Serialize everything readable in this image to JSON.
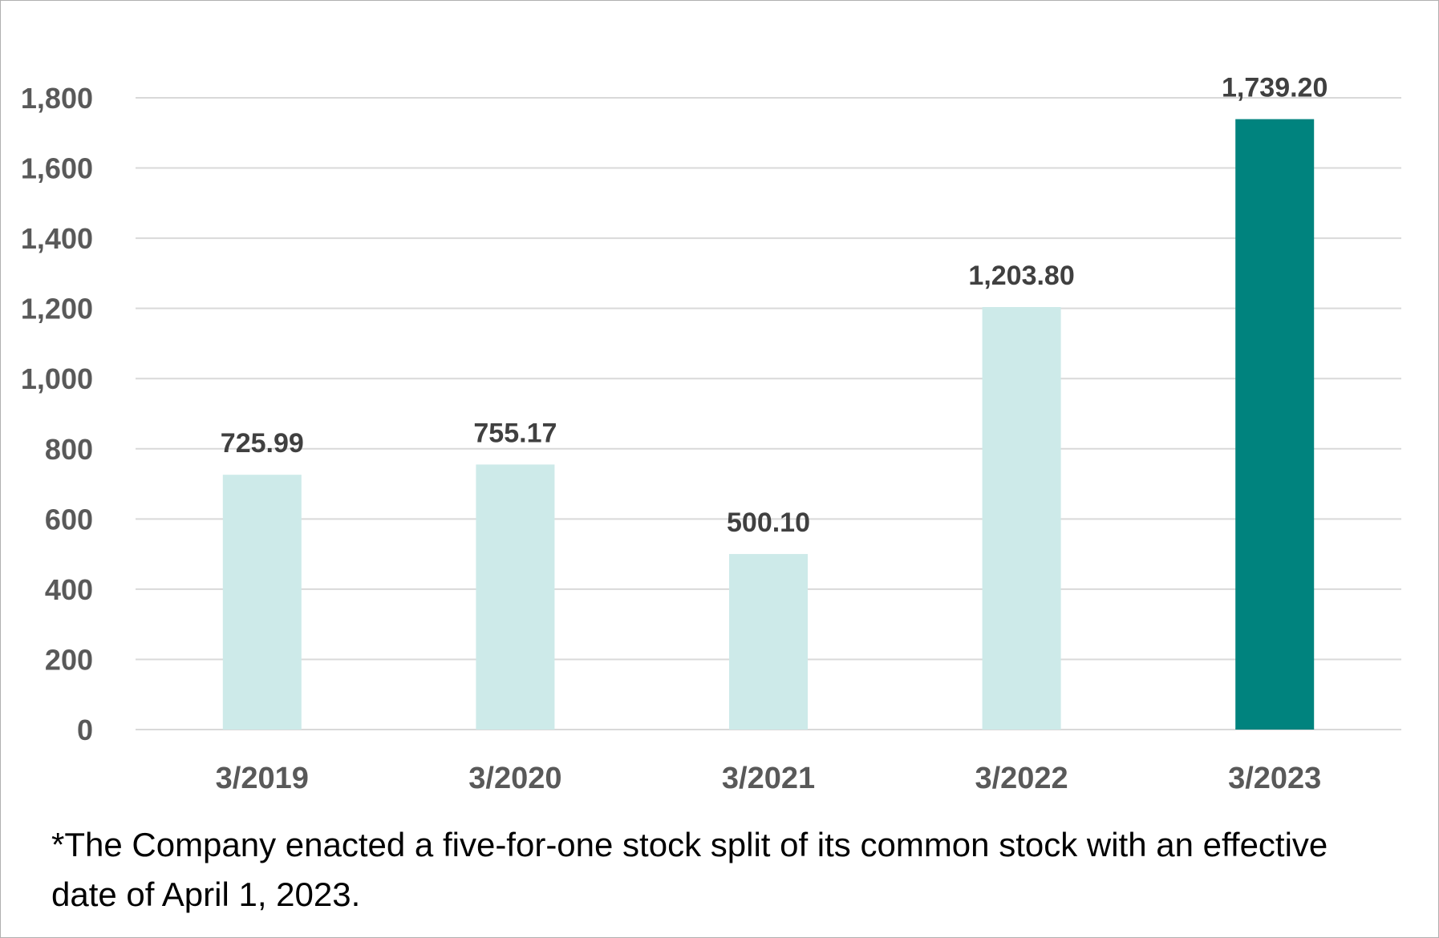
{
  "chart_data": {
    "type": "bar",
    "categories": [
      "3/2019",
      "3/2020",
      "3/2021",
      "3/2022",
      "3/2023"
    ],
    "values": [
      725.99,
      755.17,
      500.1,
      1203.8,
      1739.2
    ],
    "value_labels": [
      "725.99",
      "755.17",
      "500.10",
      "1,203.80",
      "1,739.20"
    ],
    "title": "",
    "xlabel": "",
    "ylabel": "",
    "ylim": [
      0,
      1800
    ],
    "yticks": [
      0,
      200,
      400,
      600,
      800,
      1000,
      1200,
      1400,
      1600,
      1800
    ],
    "ytick_labels": [
      "0",
      "200",
      "400",
      "600",
      "800",
      "1,000",
      "1,200",
      "1,400",
      "1,600",
      "1,800"
    ],
    "grid": true,
    "legend": "none",
    "colors": {
      "bar_default": "#cdeae9",
      "bar_highlight": "#00837e",
      "gridline": "#d9d9d9",
      "tick_text": "#595959",
      "label_text": "#404040"
    },
    "highlight_index": 4
  },
  "footnote": "*The Company enacted a five-for-one stock split of its common stock with an effective date of April 1, 2023."
}
